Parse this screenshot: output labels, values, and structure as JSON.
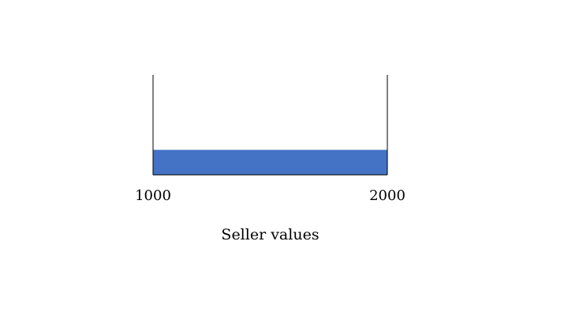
{
  "chart_data": {
    "type": "bar",
    "orientation": "horizontal",
    "title": "",
    "xlabel": "Seller values",
    "ylabel": "",
    "xlim": [
      1000,
      2000
    ],
    "xticks": [
      "1000",
      "2000"
    ],
    "grid": false,
    "bars": [
      {
        "start": 1000,
        "end": 2000,
        "height_fraction": 0.25
      }
    ],
    "colors": {
      "bar": "#4472c4",
      "axis": "#000000"
    }
  }
}
